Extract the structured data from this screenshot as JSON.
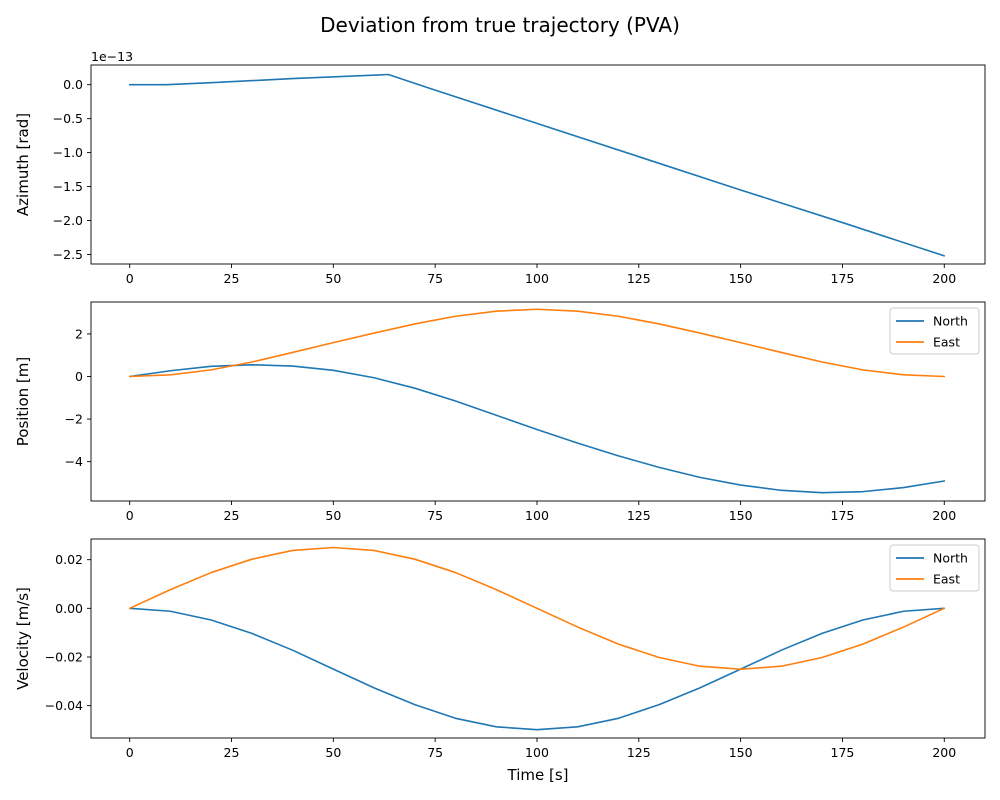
{
  "figure": {
    "title": "Deviation from true trajectory (PVA)",
    "colors": {
      "north": "#1f77b4",
      "east": "#ff7f0e",
      "azimuth": "#1f77b4"
    }
  },
  "chart_data": [
    {
      "type": "line",
      "title": "",
      "xlabel": "",
      "ylabel": "Azimuth [rad]",
      "offset_text": "1e−13",
      "xlim": [
        -9.5,
        210
      ],
      "ylim": [
        -2.64,
        0.29
      ],
      "xticks": [
        0,
        25,
        50,
        75,
        100,
        125,
        150,
        175,
        200
      ],
      "yticks": [
        0.0,
        -0.5,
        -1.0,
        -1.5,
        -2.0,
        -2.5
      ],
      "ytick_labels": [
        "0.0",
        "−0.5",
        "−1.0",
        "−1.5",
        "−2.0",
        "−2.5"
      ],
      "legend": false,
      "series": [
        {
          "color": "#1f77b4",
          "x": [
            0,
            9,
            20,
            40,
            63.5,
            75,
            100,
            125,
            150,
            175,
            200
          ],
          "values": [
            0.0,
            0.0,
            0.03,
            0.09,
            0.15,
            -0.08,
            -0.57,
            -1.06,
            -1.55,
            -2.03,
            -2.52
          ]
        }
      ]
    },
    {
      "type": "line",
      "title": "",
      "xlabel": "",
      "ylabel": "Position [m]",
      "xlim": [
        -9.5,
        210
      ],
      "ylim": [
        -5.85,
        3.5
      ],
      "xticks": [
        0,
        25,
        50,
        75,
        100,
        125,
        150,
        175,
        200
      ],
      "yticks": [
        2,
        0,
        -2,
        -4
      ],
      "ytick_labels": [
        "2",
        "0",
        "−2",
        "−4"
      ],
      "legend": true,
      "legend_position": "upper-right",
      "series": [
        {
          "name": "North",
          "color": "#1f77b4",
          "x": [
            0,
            10,
            20,
            30,
            40,
            50,
            60,
            70,
            80,
            90,
            100,
            110,
            120,
            130,
            140,
            150,
            160,
            170,
            180,
            190,
            200
          ],
          "values": [
            0.0,
            0.27,
            0.48,
            0.55,
            0.49,
            0.29,
            -0.06,
            -0.55,
            -1.15,
            -1.82,
            -2.49,
            -3.13,
            -3.73,
            -4.27,
            -4.74,
            -5.1,
            -5.35,
            -5.46,
            -5.41,
            -5.22,
            -4.91
          ]
        },
        {
          "name": "East",
          "color": "#ff7f0e",
          "x": [
            0,
            10,
            20,
            30,
            40,
            50,
            60,
            70,
            80,
            90,
            100,
            110,
            120,
            130,
            140,
            150,
            160,
            170,
            180,
            190,
            200
          ],
          "values": [
            0.0,
            0.08,
            0.31,
            0.68,
            1.13,
            1.59,
            2.04,
            2.47,
            2.83,
            3.07,
            3.16,
            3.07,
            2.83,
            2.47,
            2.04,
            1.59,
            1.13,
            0.68,
            0.31,
            0.08,
            0.0
          ]
        }
      ]
    },
    {
      "type": "line",
      "title": "",
      "xlabel": "Time [s]",
      "ylabel": "Velocity [m/s]",
      "xlim": [
        -9.5,
        210
      ],
      "ylim": [
        -0.0533,
        0.0285
      ],
      "xticks": [
        0,
        25,
        50,
        75,
        100,
        125,
        150,
        175,
        200
      ],
      "yticks": [
        0.02,
        0.0,
        -0.02,
        -0.04
      ],
      "ytick_labels": [
        "0.02",
        "0.00",
        "−0.02",
        "−0.04"
      ],
      "legend": true,
      "legend_position": "upper-right",
      "series": [
        {
          "name": "North",
          "color": "#1f77b4",
          "x": [
            0,
            10,
            20,
            30,
            40,
            50,
            60,
            70,
            80,
            90,
            100,
            110,
            120,
            130,
            140,
            150,
            160,
            170,
            180,
            190,
            200
          ],
          "values": [
            0.0,
            -0.0012,
            -0.0048,
            -0.0103,
            -0.0172,
            -0.025,
            -0.0327,
            -0.0396,
            -0.0452,
            -0.0487,
            -0.0499,
            -0.0487,
            -0.0452,
            -0.0396,
            -0.0327,
            -0.025,
            -0.0172,
            -0.0103,
            -0.0048,
            -0.0012,
            0.0
          ]
        },
        {
          "name": "East",
          "color": "#ff7f0e",
          "x": [
            0,
            10,
            20,
            30,
            40,
            50,
            60,
            70,
            80,
            90,
            100,
            110,
            120,
            130,
            140,
            150,
            160,
            170,
            180,
            190,
            200
          ],
          "values": [
            0.0,
            0.0077,
            0.0147,
            0.0202,
            0.0238,
            0.025,
            0.0238,
            0.0202,
            0.0147,
            0.0077,
            0.0,
            -0.0077,
            -0.0147,
            -0.0202,
            -0.0238,
            -0.025,
            -0.0238,
            -0.0202,
            -0.0147,
            -0.0077,
            0.0
          ]
        }
      ]
    }
  ]
}
